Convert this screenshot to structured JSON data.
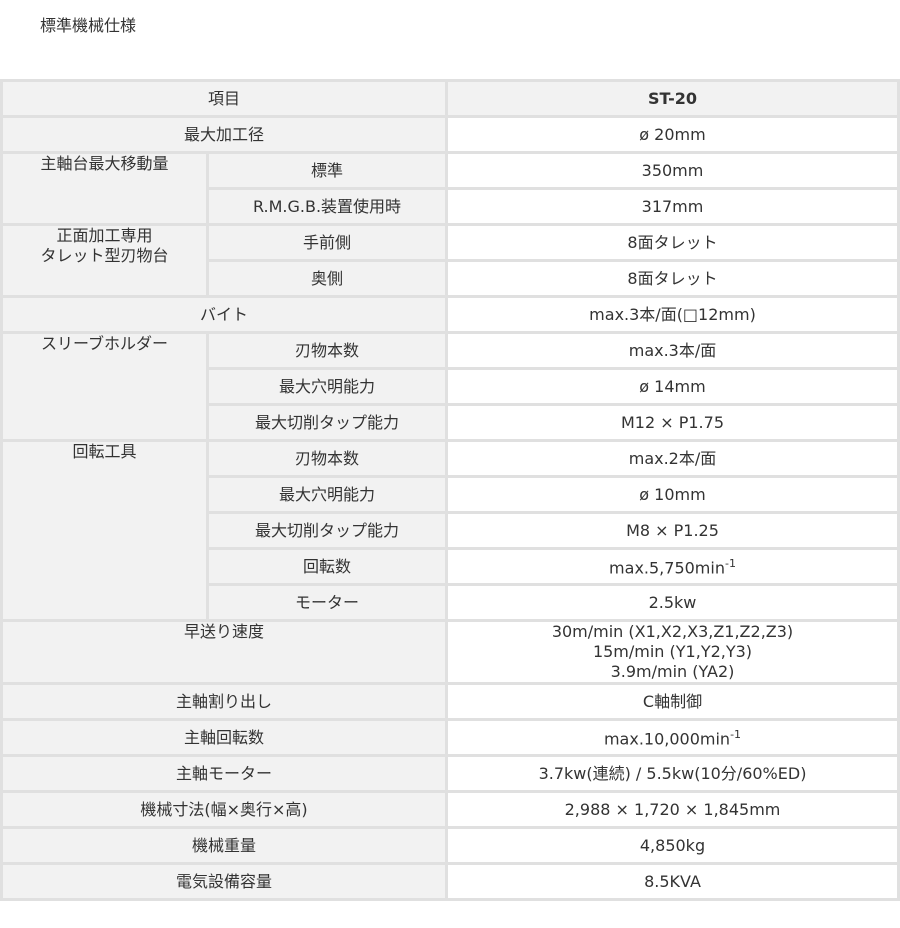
{
  "page_title": "標準機械仕様",
  "header": {
    "label": "項目",
    "value": "ST-20"
  },
  "rows": [
    {
      "label": "最大加工径",
      "value": "ø 20mm"
    },
    {
      "label": "主軸台最大移動量",
      "sub": [
        {
          "label": "標準",
          "value": "350mm"
        },
        {
          "label": "R.M.G.B.装置使用時",
          "value": "317mm"
        }
      ]
    },
    {
      "label": "正面加工専用\nタレット型刃物台",
      "sub": [
        {
          "label": "手前側",
          "value": "8面タレット"
        },
        {
          "label": "奥側",
          "value": "8面タレット"
        }
      ]
    },
    {
      "label": "バイト",
      "value": "max.3本/面(□12mm)"
    },
    {
      "label": "スリーブホルダー",
      "sub": [
        {
          "label": "刃物本数",
          "value": "max.3本/面"
        },
        {
          "label": "最大穴明能力",
          "value": "ø 14mm"
        },
        {
          "label": "最大切削タップ能力",
          "value": "M12 × P1.75"
        }
      ]
    },
    {
      "label": "回転工具",
      "sub": [
        {
          "label": "刃物本数",
          "value": "max.2本/面"
        },
        {
          "label": "最大穴明能力",
          "value": "ø 10mm"
        },
        {
          "label": "最大切削タップ能力",
          "value": "M8 × P1.25"
        },
        {
          "label": "回転数",
          "value": "max.5,750min",
          "sup": "-1"
        },
        {
          "label": "モーター",
          "value": "2.5kw"
        }
      ]
    },
    {
      "label": "早送り速度",
      "lines": [
        "30m/min (X1,X2,X3,Z1,Z2,Z3)",
        "15m/min (Y1,Y2,Y3)",
        "3.9m/min (YA2)"
      ]
    },
    {
      "label": "主軸割り出し",
      "value": "C軸制御"
    },
    {
      "label": "主軸回転数",
      "value": "max.10,000min",
      "sup": "-1"
    },
    {
      "label": "主軸モーター",
      "value": "3.7kw(連続) / 5.5kw(10分/60%ED)"
    },
    {
      "label": "機械寸法(幅×奥行×高)",
      "value": "2,988 × 1,720 × 1,845mm"
    },
    {
      "label": "機械重量",
      "value": "4,850kg"
    },
    {
      "label": "電気設備容量",
      "value": "8.5KVA"
    }
  ]
}
